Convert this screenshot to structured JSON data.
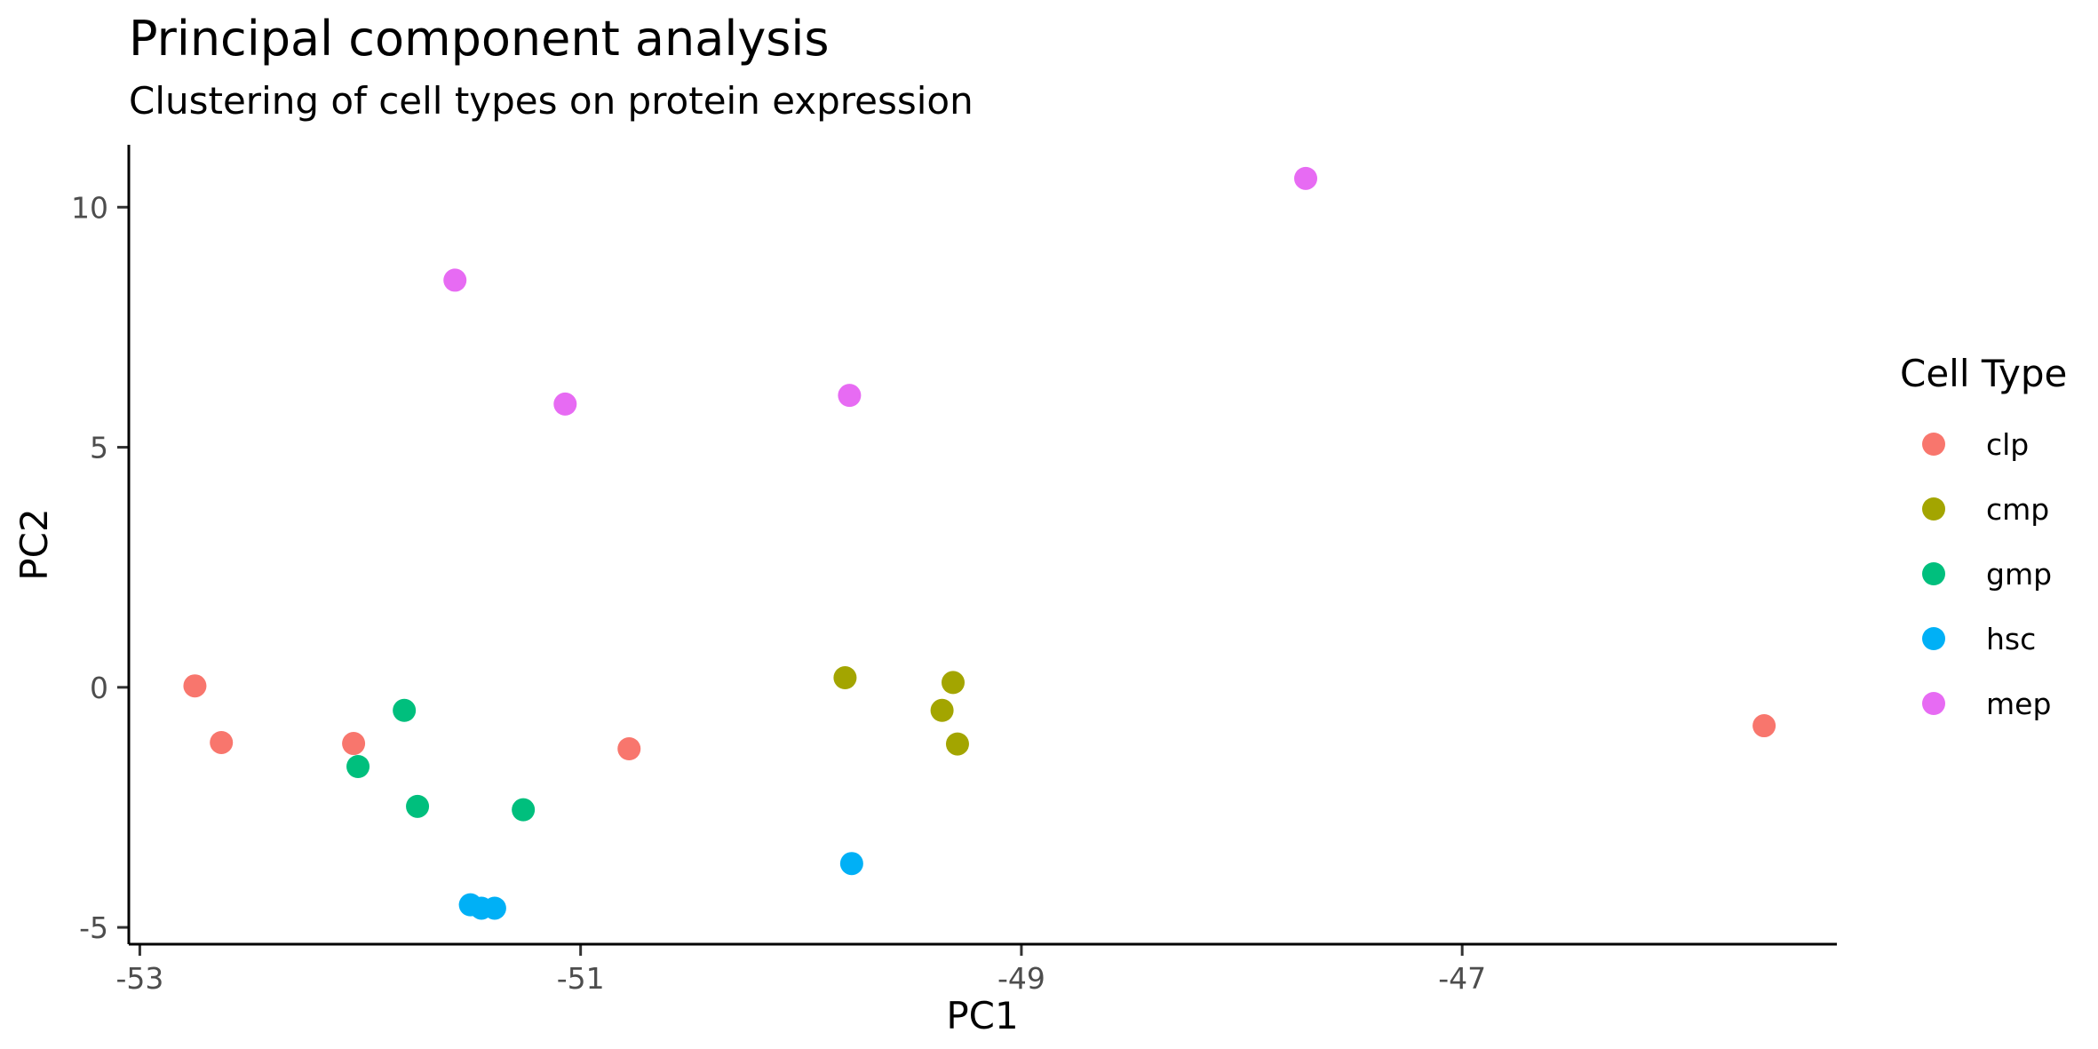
{
  "chart_data": {
    "type": "scatter",
    "title": "Principal component analysis",
    "subtitle": "Clustering of cell types on protein expression",
    "xlabel": "PC1",
    "ylabel": "PC2",
    "xlim": [
      -53.05,
      -45.3
    ],
    "ylim": [
      -5.35,
      11.3
    ],
    "xticks": [
      -53,
      -51,
      -49,
      -47
    ],
    "xtick_labels": [
      "-53",
      "-51",
      "-49",
      "-47"
    ],
    "yticks": [
      -5,
      0,
      5,
      10
    ],
    "ytick_labels": [
      "-5",
      "0",
      "5",
      "10"
    ],
    "grid": false,
    "legend": {
      "title": "Cell Type",
      "position": "right"
    },
    "series": [
      {
        "name": "clp",
        "color": "#F8766D",
        "points": [
          [
            -52.75,
            0.03
          ],
          [
            -52.63,
            -1.15
          ],
          [
            -52.03,
            -1.17
          ],
          [
            -50.78,
            -1.28
          ],
          [
            -45.63,
            -0.8
          ]
        ]
      },
      {
        "name": "cmp",
        "color": "#A3A500",
        "points": [
          [
            -49.8,
            0.2
          ],
          [
            -49.31,
            0.1
          ],
          [
            -49.36,
            -0.48
          ],
          [
            -49.29,
            -1.18
          ]
        ]
      },
      {
        "name": "gmp",
        "color": "#00BF7D",
        "points": [
          [
            -51.8,
            -0.48
          ],
          [
            -52.01,
            -1.65
          ],
          [
            -51.74,
            -2.48
          ],
          [
            -51.26,
            -2.55
          ]
        ]
      },
      {
        "name": "hsc",
        "color": "#00B0F6",
        "points": [
          [
            -51.5,
            -4.53
          ],
          [
            -51.45,
            -4.6
          ],
          [
            -51.39,
            -4.6
          ],
          [
            -49.77,
            -3.67
          ]
        ]
      },
      {
        "name": "mep",
        "color": "#E76BF3",
        "points": [
          [
            -51.57,
            8.48
          ],
          [
            -51.07,
            5.9
          ],
          [
            -49.78,
            6.08
          ],
          [
            -47.71,
            10.6
          ]
        ]
      }
    ]
  }
}
